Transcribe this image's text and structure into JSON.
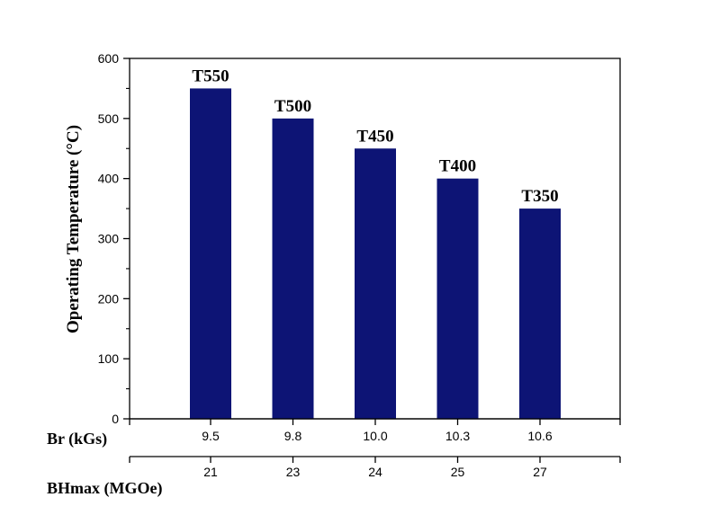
{
  "chart_data": {
    "type": "bar",
    "categories": [
      "T550",
      "T500",
      "T450",
      "T400",
      "T350"
    ],
    "values": [
      550,
      500,
      450,
      400,
      350
    ],
    "bar_labels": [
      "T550",
      "T500",
      "T450",
      "T400",
      "T350"
    ],
    "ylabel": "Operating Temperature (°C)",
    "ylim": [
      0,
      600
    ],
    "yticks": [
      0,
      100,
      200,
      300,
      400,
      500,
      600
    ],
    "bar_color": "#0d1475",
    "grid": false,
    "secondary_axes": [
      {
        "label": "Br (kGs)",
        "ticks": [
          "9.5",
          "9.8",
          "10.0",
          "10.3",
          "10.6"
        ]
      },
      {
        "label": "BHmax (MGOe)",
        "ticks": [
          "21",
          "23",
          "24",
          "25",
          "27"
        ]
      }
    ]
  }
}
